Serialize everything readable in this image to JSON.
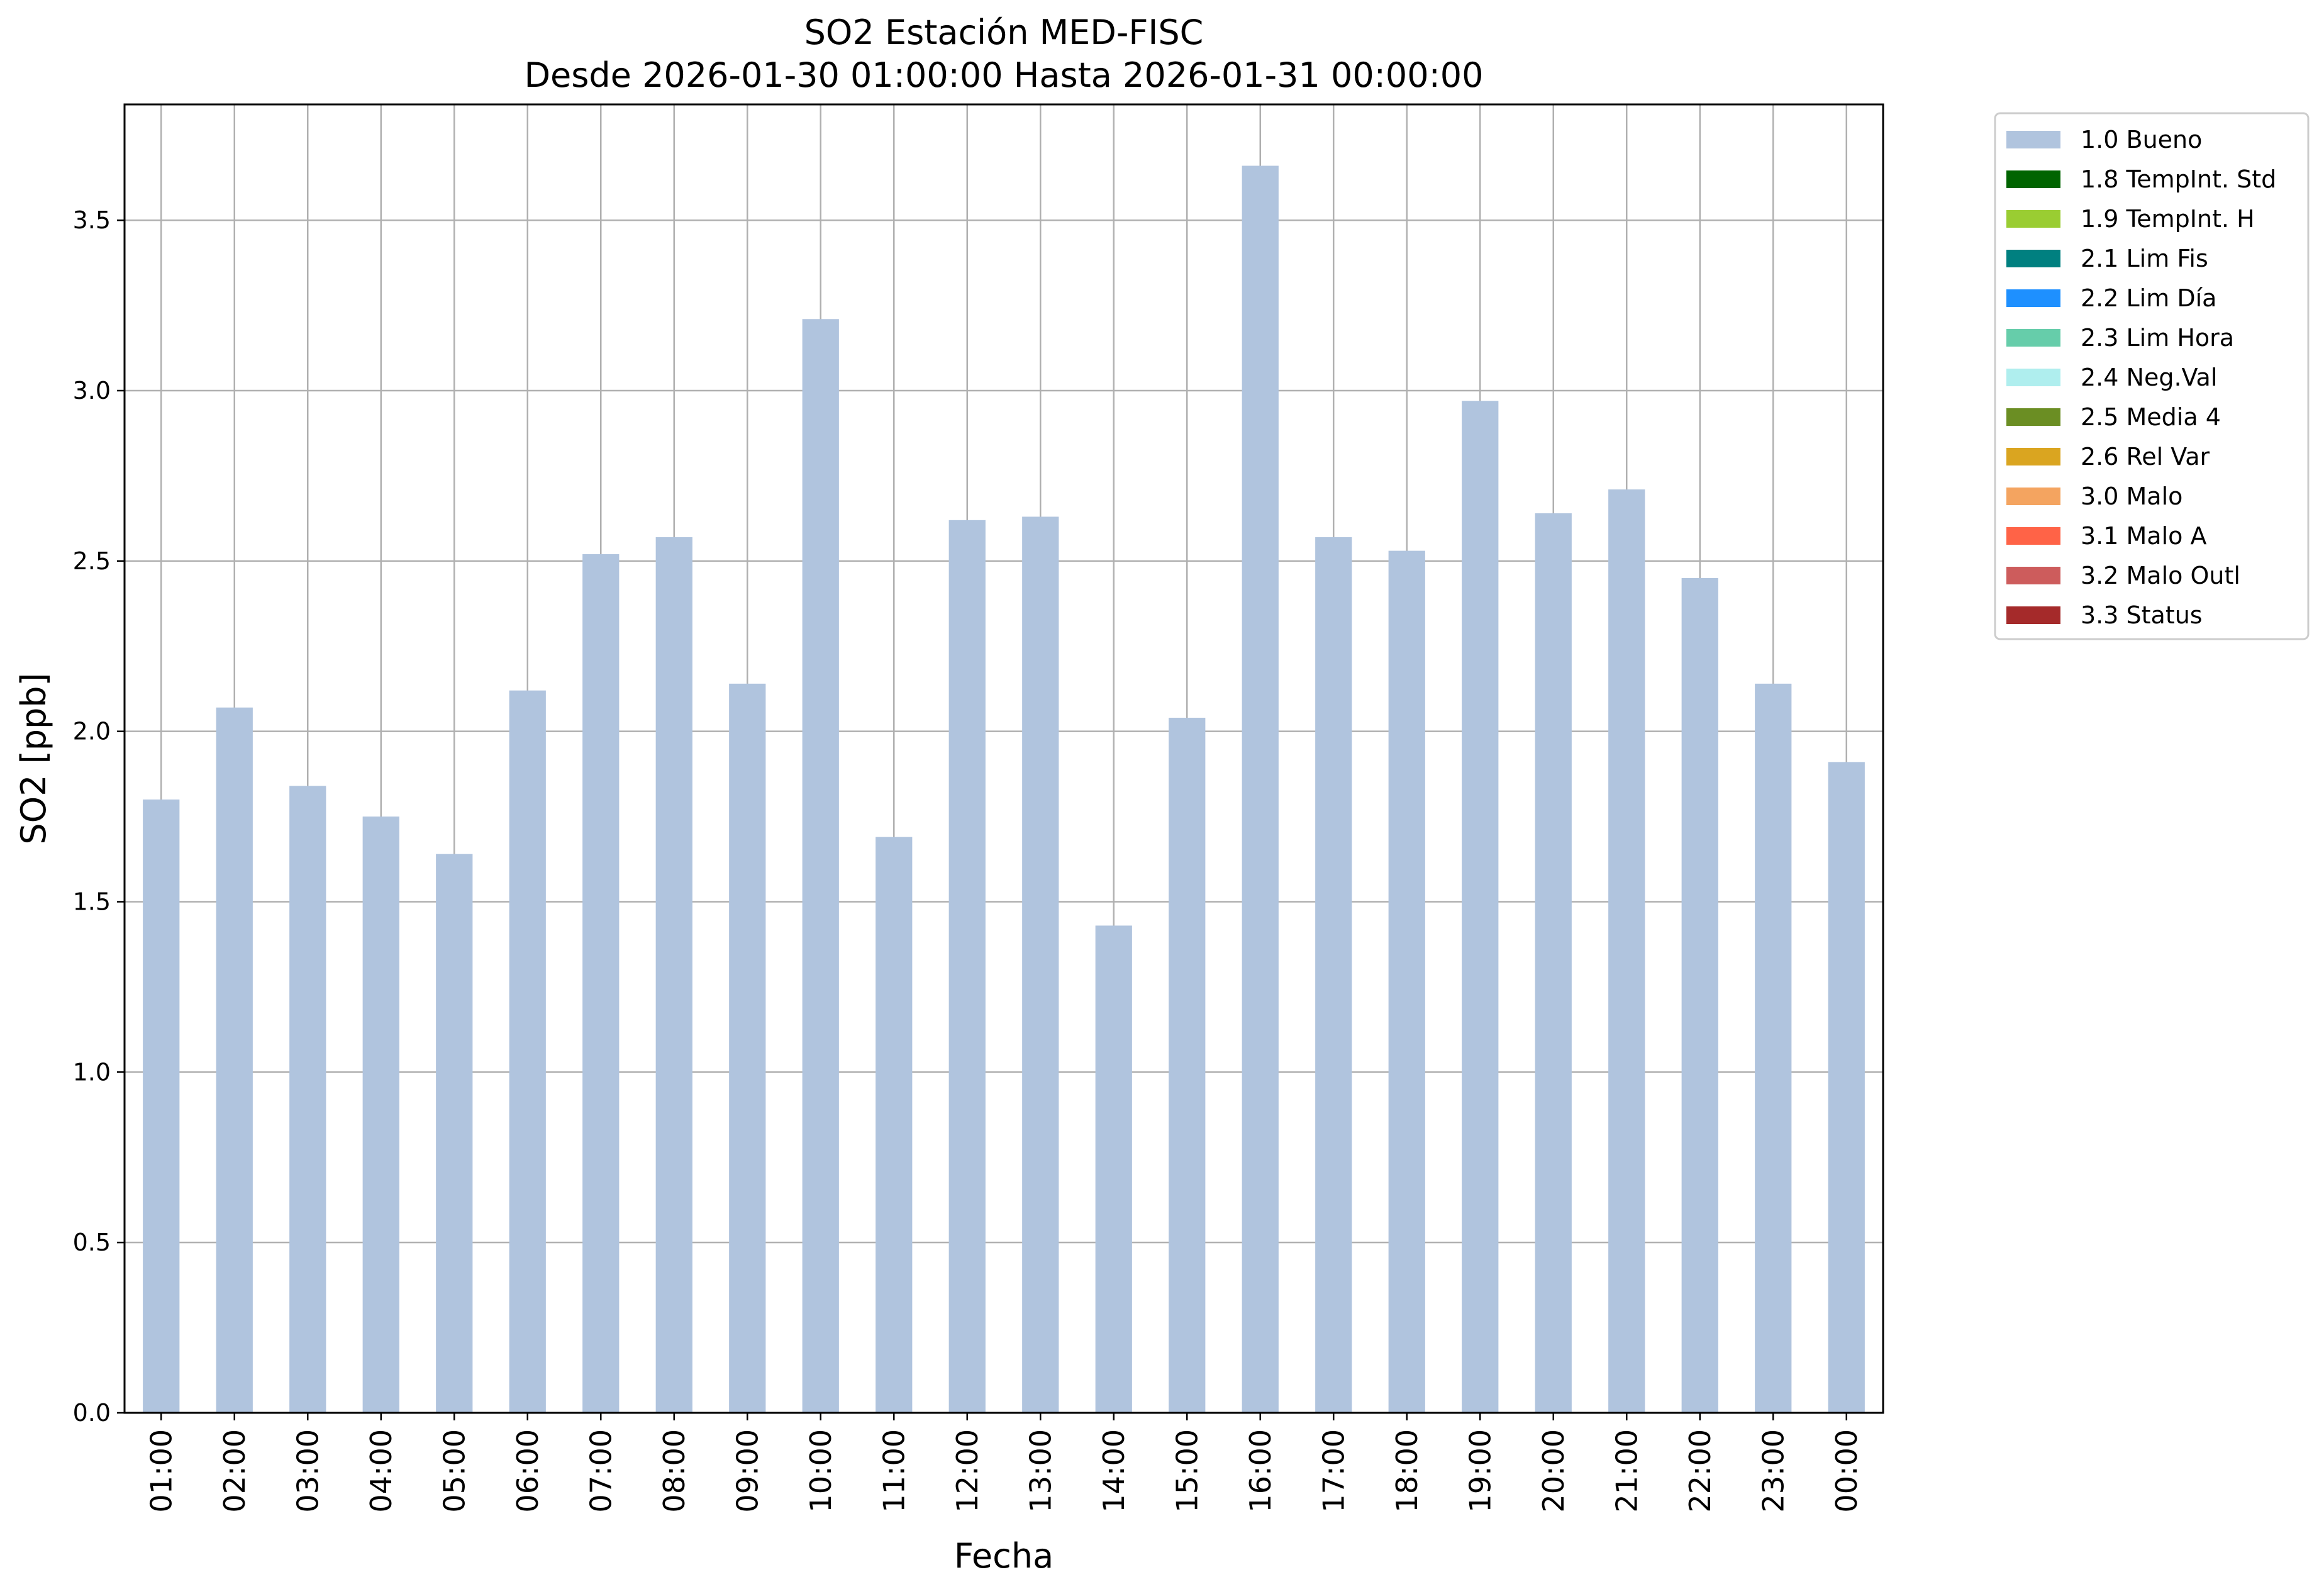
{
  "chart_data": {
    "type": "bar",
    "title": "SO2 Estación MED-FISC",
    "subtitle": "Desde 2026-01-30 01:00:00 Hasta 2026-01-31 00:00:00",
    "xlabel": "Fecha",
    "ylabel": "SO2 [ppb]",
    "ylim": [
      0,
      3.84
    ],
    "yticks": [
      "0.0",
      "0.5",
      "1.0",
      "1.5",
      "2.0",
      "2.5",
      "3.0",
      "3.5"
    ],
    "grid": true,
    "legend_position": "outside-top-right",
    "categories": [
      "01:00",
      "02:00",
      "03:00",
      "04:00",
      "05:00",
      "06:00",
      "07:00",
      "08:00",
      "09:00",
      "10:00",
      "11:00",
      "12:00",
      "13:00",
      "14:00",
      "15:00",
      "16:00",
      "17:00",
      "18:00",
      "19:00",
      "20:00",
      "21:00",
      "22:00",
      "23:00",
      "00:00"
    ],
    "series": [
      {
        "name": "1.0 Bueno",
        "color": "#b0c4de",
        "values": [
          1.8,
          2.07,
          1.84,
          1.75,
          1.64,
          2.12,
          2.52,
          2.57,
          2.14,
          3.21,
          1.69,
          2.62,
          2.63,
          1.43,
          2.04,
          3.66,
          2.57,
          2.53,
          2.97,
          2.64,
          2.71,
          2.45,
          2.14,
          1.91
        ]
      }
    ],
    "legend": [
      {
        "label": "1.0 Bueno",
        "color": "#b0c4de"
      },
      {
        "label": "1.8 TempInt. Std",
        "color": "#006400"
      },
      {
        "label": "1.9 TempInt. H",
        "color": "#9acd32"
      },
      {
        "label": "2.1 Lim Fis",
        "color": "#008080"
      },
      {
        "label": "2.2 Lim Día",
        "color": "#1e90ff"
      },
      {
        "label": "2.3 Lim Hora",
        "color": "#66cdaa"
      },
      {
        "label": "2.4 Neg.Val",
        "color": "#afeeee"
      },
      {
        "label": "2.5 Media 4",
        "color": "#6b8e23"
      },
      {
        "label": "2.6 Rel Var",
        "color": "#daa520"
      },
      {
        "label": "3.0 Malo",
        "color": "#f4a460"
      },
      {
        "label": "3.1 Malo A",
        "color": "#ff6347"
      },
      {
        "label": "3.2 Malo Outl",
        "color": "#cd5c5c"
      },
      {
        "label": "3.3 Status",
        "color": "#a52a2a"
      }
    ]
  }
}
